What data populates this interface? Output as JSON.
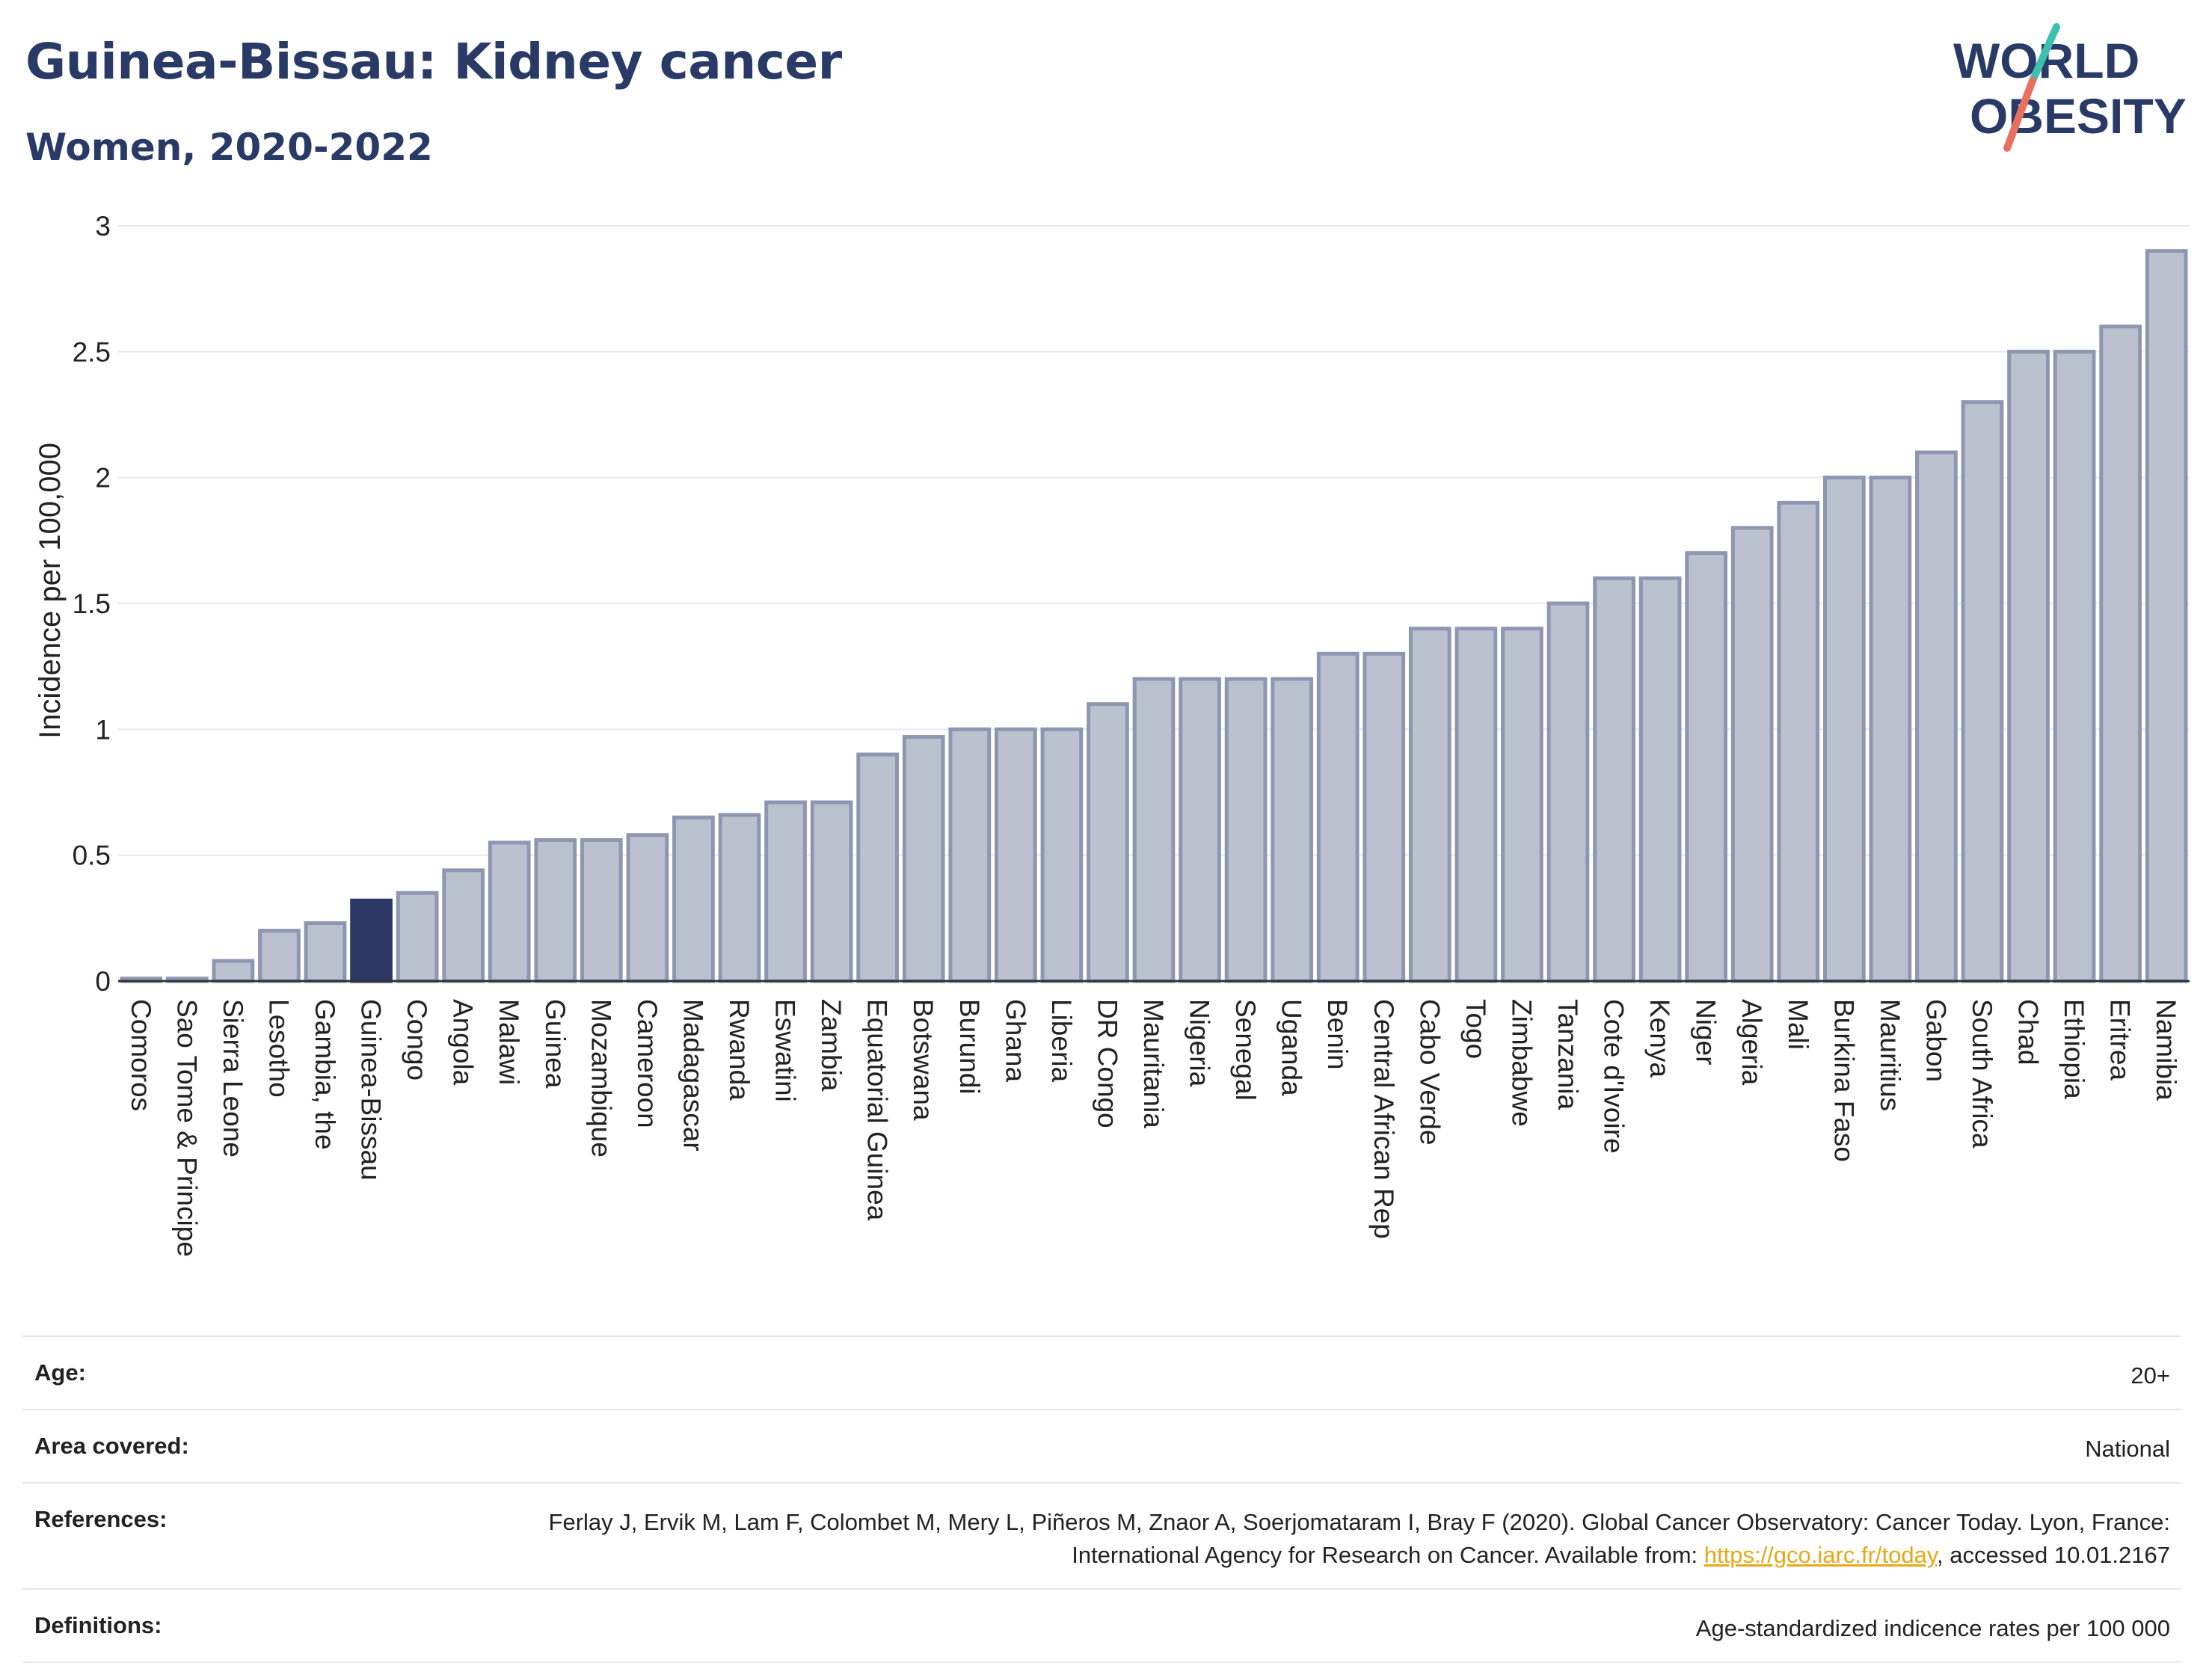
{
  "header": {
    "title": "Guinea-Bissau: Kidney cancer",
    "subtitle": "Women, 2020-2022",
    "logo_line1": "WORLD",
    "logo_line2": "OBESITY"
  },
  "colors": {
    "title": "#2a3a66",
    "bar_fill": "#bcc1cf",
    "bar_stroke": "#8e96b2",
    "highlight": "#2b3866",
    "grid": "#e6e8ef",
    "logo_teal": "#3fbfb0",
    "logo_coral": "#e8705f",
    "link": "#e6a817"
  },
  "chart_data": {
    "type": "bar",
    "ylabel": "Incidence per 100,000",
    "ylim": [
      0,
      3
    ],
    "yticks": [
      "0",
      "0.5",
      "1",
      "1.5",
      "2",
      "2.5",
      "3"
    ],
    "highlight": "Guinea-Bissau",
    "categories": [
      "Comoros",
      "Sao Tome & Principe",
      "Sierra Leone",
      "Lesotho",
      "Gambia, the",
      "Guinea-Bissau",
      "Congo",
      "Angola",
      "Malawi",
      "Guinea",
      "Mozambique",
      "Cameroon",
      "Madagascar",
      "Rwanda",
      "Eswatini",
      "Zambia",
      "Equatorial Guinea",
      "Botswana",
      "Burundi",
      "Ghana",
      "Liberia",
      "DR Congo",
      "Mauritania",
      "Nigeria",
      "Senegal",
      "Uganda",
      "Benin",
      "Central African Rep",
      "Cabo Verde",
      "Togo",
      "Zimbabwe",
      "Tanzania",
      "Cote d'Ivoire",
      "Kenya",
      "Niger",
      "Algeria",
      "Mali",
      "Burkina Faso",
      "Mauritius",
      "Gabon",
      "South Africa",
      "Chad",
      "Ethiopia",
      "Eritrea",
      "Namibia"
    ],
    "values": [
      0.01,
      0.01,
      0.08,
      0.2,
      0.23,
      0.32,
      0.35,
      0.44,
      0.55,
      0.56,
      0.56,
      0.58,
      0.65,
      0.66,
      0.71,
      0.71,
      0.9,
      0.97,
      1.0,
      1.0,
      1.0,
      1.1,
      1.2,
      1.2,
      1.2,
      1.2,
      1.3,
      1.3,
      1.4,
      1.4,
      1.4,
      1.5,
      1.6,
      1.6,
      1.7,
      1.8,
      1.9,
      2.0,
      2.0,
      2.1,
      2.3,
      2.5,
      2.5,
      2.6,
      2.9
    ]
  },
  "footer": {
    "rows": [
      {
        "label": "Age:",
        "value": "20+"
      },
      {
        "label": "Area covered:",
        "value": "National"
      },
      {
        "label": "References:",
        "value_pre": "Ferlay J, Ervik M, Lam F, Colombet M, Mery L, Piñeros M, Znaor A, Soerjomataram I, Bray F (2020). Global Cancer Observatory: Cancer Today. Lyon, France: International Agency for Research on Cancer. Available from: ",
        "link": "https://gco.iarc.fr/today",
        "value_post": ", accessed 10.01.2167"
      },
      {
        "label": "Definitions:",
        "value": "Age-standardized indicence rates per 100 000"
      }
    ]
  }
}
